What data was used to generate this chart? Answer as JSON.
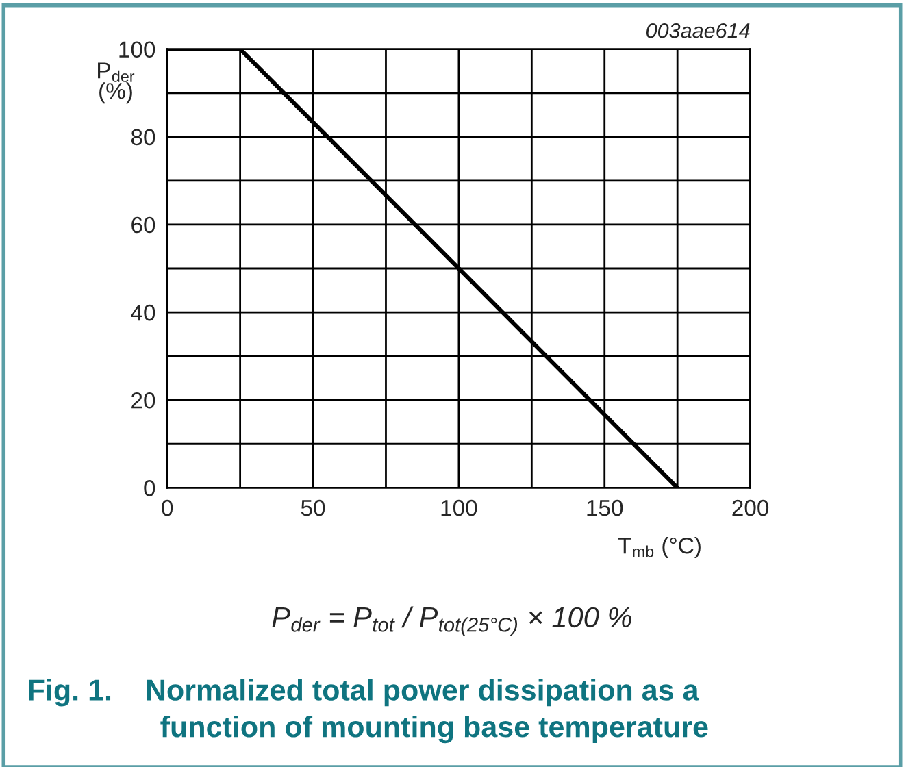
{
  "chart_data": {
    "type": "line",
    "title": "Fig. 1.    Normalized total power dissipation as a\nfunction of mounting base temperature",
    "xlabel": "T$_{mb}$ (°C)",
    "ylabel": "P$_{der}$\n(%)",
    "x": [
      0,
      25,
      175
    ],
    "series": [
      {
        "color": "#000000",
        "values": [
          100,
          100,
          0
        ]
      }
    ],
    "xlim": [
      0,
      200
    ],
    "ylim": [
      0,
      100
    ],
    "xticks": [
      0,
      {
        "value": 25,
        "label": null
      },
      50,
      {
        "value": 75,
        "label": null
      },
      100,
      {
        "value": 125,
        "label": null
      },
      150,
      {
        "value": 175,
        "label": null
      },
      200
    ],
    "yticks": [
      0,
      {
        "value": 10,
        "label": null
      },
      20,
      {
        "value": 30,
        "label": null
      },
      40,
      {
        "value": 50,
        "label": null
      },
      60,
      {
        "value": 70,
        "label": null
      },
      80,
      {
        "value": 90,
        "label": null
      },
      100
    ],
    "grid": true,
    "legend": false,
    "marker": "none",
    "line_style": "solid",
    "annotations": [
      "003aae614",
      "P$_{der}$ = P$_{tot}$ / P$_{tot(25°C)}$ × 100 %"
    ]
  }
}
